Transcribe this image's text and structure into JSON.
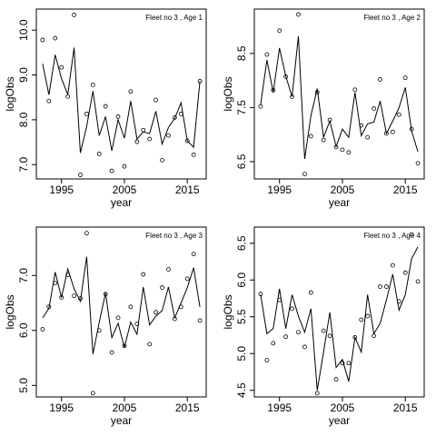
{
  "chart_data": [
    {
      "type": "line",
      "label": "Fleet no 3 , Age 1",
      "x_label": "year",
      "y_label": "logObs",
      "x": [
        1992,
        1993,
        1994,
        1995,
        1996,
        1997,
        1998,
        1999,
        2000,
        2001,
        2002,
        2003,
        2004,
        2005,
        2006,
        2007,
        2008,
        2009,
        2010,
        2011,
        2012,
        2013,
        2014,
        2015,
        2016,
        2017
      ],
      "xlim": [
        1991,
        2018
      ],
      "xticks": [
        1995,
        2005,
        2015
      ],
      "ylim": [
        6.68,
        10.47
      ],
      "yticks": [
        {
          "value": 7,
          "label": "7.0"
        },
        {
          "value": 8,
          "label": "8.0"
        },
        {
          "value": 9,
          "label": "9.0"
        },
        {
          "value": 10,
          "label": "10.0"
        }
      ],
      "series": [
        {
          "style": "points",
          "color": "#000000",
          "values": [
            9.78,
            8.42,
            9.82,
            9.17,
            8.52,
            10.34,
            6.77,
            8.13,
            8.78,
            7.24,
            8.3,
            6.86,
            8.07,
            6.96,
            8.63,
            7.51,
            7.77,
            7.57,
            8.44,
            7.1,
            7.65,
            8.05,
            8.13,
            7.53,
            7.22,
            8.86
          ]
        },
        {
          "style": "line",
          "color": "#000000",
          "values": [
            9.25,
            8.56,
            9.45,
            8.92,
            8.56,
            9.61,
            7.26,
            7.85,
            8.64,
            7.65,
            8.07,
            7.31,
            8.0,
            7.59,
            8.42,
            7.57,
            7.73,
            7.69,
            8.19,
            7.46,
            7.83,
            8.03,
            8.38,
            7.53,
            7.39,
            8.86
          ]
        }
      ]
    },
    {
      "type": "line",
      "label": "Fleet no 3 , Age 2",
      "x_label": "year",
      "y_label": "logObs",
      "x": [
        1992,
        1993,
        1994,
        1995,
        1996,
        1997,
        1998,
        1999,
        2000,
        2001,
        2002,
        2003,
        2004,
        2005,
        2006,
        2007,
        2008,
        2009,
        2010,
        2011,
        2012,
        2013,
        2014,
        2015,
        2016,
        2017
      ],
      "xlim": [
        1991,
        2018
      ],
      "xticks": [
        1995,
        2005,
        2015
      ],
      "ylim": [
        6.18,
        9.32
      ],
      "yticks": [
        6.5,
        7.5,
        8.5
      ],
      "series": [
        {
          "style": "points",
          "color": "#000000",
          "values": [
            7.52,
            8.48,
            7.82,
            8.92,
            8.07,
            7.7,
            9.22,
            6.27,
            6.97,
            7.78,
            6.9,
            7.27,
            6.77,
            6.72,
            6.67,
            7.83,
            7.17,
            6.95,
            7.48,
            8.02,
            7.02,
            7.05,
            7.37,
            8.05,
            7.1,
            6.47
          ]
        },
        {
          "style": "line",
          "color": "#000000",
          "values": [
            7.55,
            8.38,
            7.78,
            8.6,
            8.08,
            7.7,
            8.82,
            6.55,
            7.35,
            7.85,
            6.95,
            7.25,
            6.78,
            7.1,
            6.95,
            7.78,
            6.98,
            7.2,
            7.23,
            7.62,
            7.02,
            7.25,
            7.5,
            7.87,
            7.07,
            6.68
          ]
        }
      ]
    },
    {
      "type": "line",
      "label": "Fleet no 3 , Age 3",
      "x_label": "year",
      "y_label": "logObs",
      "x": [
        1992,
        1993,
        1994,
        1995,
        1996,
        1997,
        1998,
        1999,
        2000,
        2001,
        2002,
        2003,
        2004,
        2005,
        2006,
        2007,
        2008,
        2009,
        2010,
        2011,
        2012,
        2013,
        2014,
        2015,
        2016,
        2017
      ],
      "xlim": [
        1991,
        2018
      ],
      "xticks": [
        1995,
        2005,
        2015
      ],
      "ylim": [
        4.79,
        7.88
      ],
      "yticks": [
        {
          "value": 5,
          "label": "5.0"
        },
        {
          "value": 6,
          "label": "6.0"
        },
        {
          "value": 7,
          "label": "7.0"
        }
      ],
      "series": [
        {
          "style": "points",
          "color": "#000000",
          "values": [
            6.02,
            6.43,
            6.86,
            6.6,
            7.01,
            6.63,
            6.58,
            7.77,
            4.86,
            6.0,
            6.66,
            5.6,
            6.23,
            5.72,
            6.43,
            6.12,
            7.02,
            5.75,
            6.33,
            6.78,
            7.11,
            6.21,
            6.43,
            6.94,
            7.39,
            6.18
          ]
        },
        {
          "style": "line",
          "color": "#000000",
          "values": [
            6.23,
            6.4,
            7.06,
            6.6,
            7.12,
            6.76,
            6.53,
            7.34,
            5.57,
            6.15,
            6.68,
            5.87,
            6.13,
            5.69,
            6.15,
            5.93,
            6.79,
            6.1,
            6.26,
            6.36,
            6.79,
            6.23,
            6.5,
            6.78,
            7.14,
            6.43
          ]
        }
      ]
    },
    {
      "type": "line",
      "label": "Fleet no 3 , Age 4",
      "x_label": "year",
      "y_label": "logObs",
      "x": [
        1992,
        1993,
        1994,
        1995,
        1996,
        1997,
        1998,
        1999,
        2000,
        2001,
        2002,
        2003,
        2004,
        2005,
        2006,
        2007,
        2008,
        2009,
        2010,
        2011,
        2012,
        2013,
        2014,
        2015,
        2016,
        2017
      ],
      "xlim": [
        1991,
        2018
      ],
      "xticks": [
        1995,
        2005,
        2015
      ],
      "ylim": [
        4.41,
        6.72
      ],
      "yticks": [
        4.5,
        {
          "value": 5,
          "label": "5.0"
        },
        5.5,
        {
          "value": 6,
          "label": "6.0"
        },
        6.5
      ],
      "series": [
        {
          "style": "points",
          "color": "#000000",
          "values": [
            5.81,
            4.91,
            5.14,
            5.73,
            5.23,
            5.61,
            5.29,
            5.09,
            5.83,
            4.46,
            5.31,
            5.24,
            4.65,
            4.87,
            4.87,
            5.22,
            5.46,
            5.51,
            5.24,
            5.91,
            5.91,
            6.2,
            5.71,
            6.1,
            6.62,
            5.98
          ]
        },
        {
          "style": "line",
          "color": "#000000",
          "values": [
            5.8,
            5.27,
            5.34,
            5.88,
            5.34,
            5.8,
            5.51,
            5.29,
            5.61,
            4.5,
            5.02,
            5.56,
            4.81,
            4.92,
            4.62,
            5.22,
            5.02,
            5.8,
            5.27,
            5.41,
            5.73,
            6.08,
            5.59,
            5.8,
            6.29,
            6.45
          ]
        }
      ]
    }
  ]
}
